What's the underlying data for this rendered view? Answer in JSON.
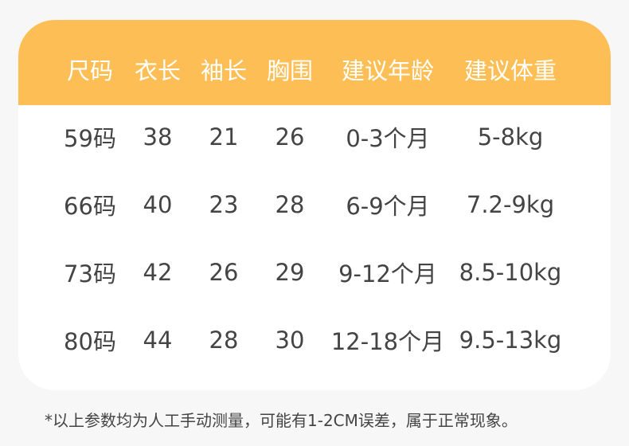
{
  "table": {
    "headers": [
      "尺码",
      "衣长",
      "袖长",
      "胸围",
      "建议年龄",
      "建议体重"
    ],
    "rows": [
      [
        "59码",
        "38",
        "21",
        "26",
        "0-3个月",
        "5-8kg"
      ],
      [
        "66码",
        "40",
        "23",
        "28",
        "6-9个月",
        "7.2-9kg"
      ],
      [
        "73码",
        "42",
        "26",
        "29",
        "9-12个月",
        "8.5-10kg"
      ],
      [
        "80码",
        "44",
        "28",
        "30",
        "12-18个月",
        "9.5-13kg"
      ]
    ]
  },
  "note": "*以上参数均为人工手动测量，可能有1-2CM误差，属于正常现象。",
  "colors": {
    "header": "#fdbf55",
    "text": "#444444",
    "background": "#f7f7f8"
  }
}
